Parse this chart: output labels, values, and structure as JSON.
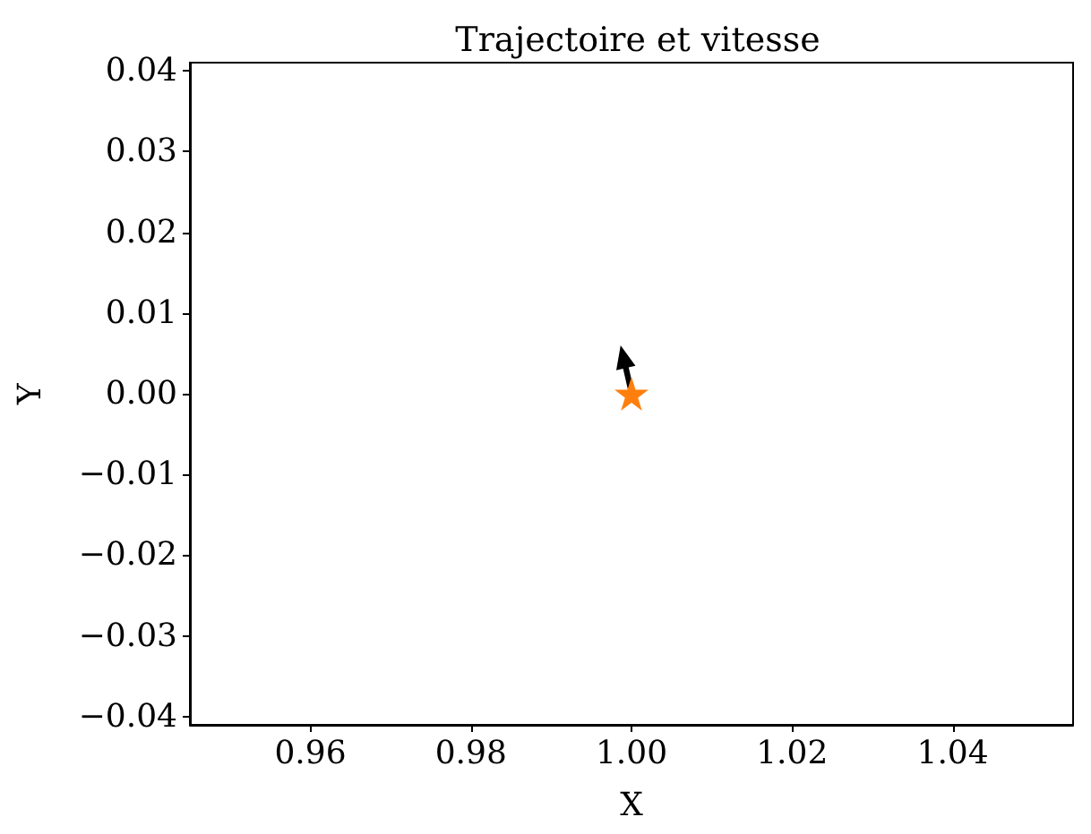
{
  "chart_data": {
    "type": "scatter",
    "title": "Trajectoire et vitesse",
    "xlabel": "X",
    "ylabel": "Y",
    "x": [
      1.0
    ],
    "values": [
      0.0
    ],
    "color": "#ff7f0e",
    "marker": "star",
    "xlim": [
      0.945,
      1.055
    ],
    "ylim": [
      -0.041,
      0.041
    ],
    "xticks": [
      0.96,
      0.98,
      {
        "value": 1.0,
        "label": "1.00"
      },
      1.02,
      1.04
    ],
    "yticks": [
      {
        "value": -0.04,
        "label": "−0.04"
      },
      {
        "value": -0.03,
        "label": "−0.03"
      },
      {
        "value": -0.02,
        "label": "−0.02"
      },
      {
        "value": -0.01,
        "label": "−0.01"
      },
      {
        "value": 0,
        "label": "0.00"
      },
      0.01,
      0.02,
      0.03,
      0.04
    ],
    "grid": false
  }
}
